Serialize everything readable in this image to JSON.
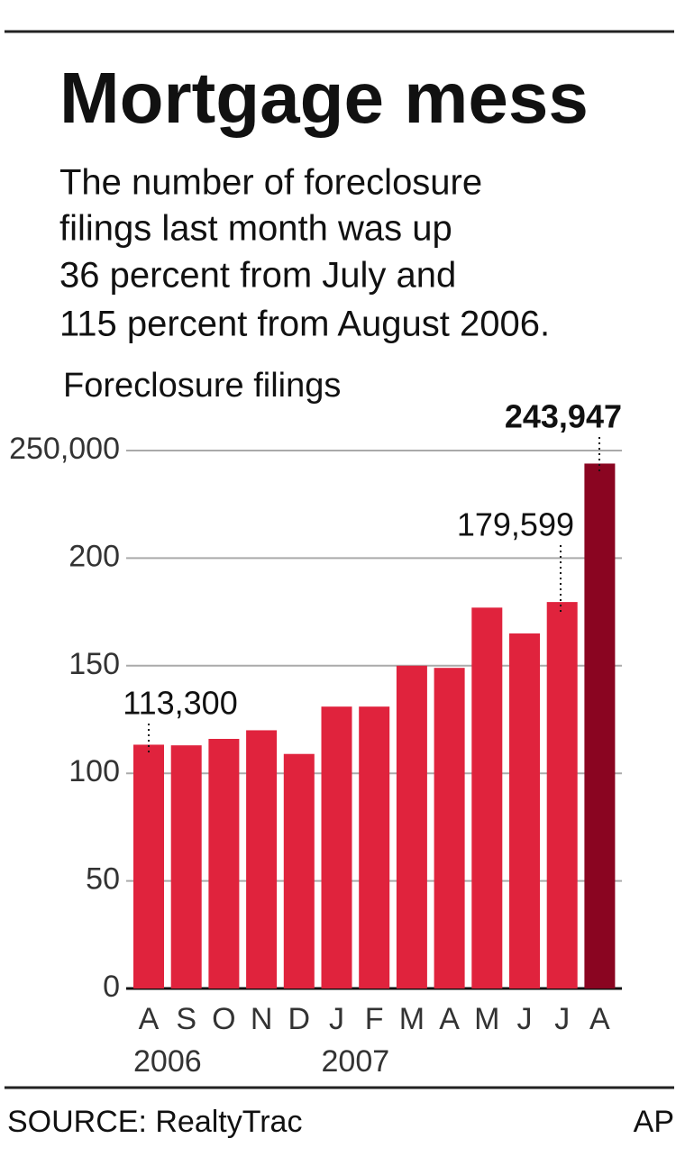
{
  "chart_data": {
    "type": "bar",
    "title": "Mortgage mess",
    "subtitle": [
      "The number of foreclosure",
      "filings last month was up",
      "36 percent from July and",
      "115 percent from August 2006."
    ],
    "y_label": "Foreclosure filings",
    "categories": [
      "A",
      "S",
      "O",
      "N",
      "D",
      "J",
      "F",
      "M",
      "A",
      "M",
      "J",
      "J",
      "A"
    ],
    "year_labels": [
      "2006",
      null,
      null,
      null,
      null,
      "2007",
      null,
      null,
      null,
      null,
      null,
      null,
      null
    ],
    "values": [
      113300,
      113000,
      116000,
      120000,
      109000,
      131000,
      131000,
      150000,
      149000,
      177000,
      165000,
      179599,
      243947
    ],
    "value_labels": [
      "113,300",
      null,
      null,
      null,
      null,
      null,
      null,
      null,
      null,
      null,
      null,
      "179,599",
      "243,947"
    ],
    "colors": [
      "#e0233d",
      "#e0233d",
      "#e0233d",
      "#e0233d",
      "#e0233d",
      "#e0233d",
      "#e0233d",
      "#e0233d",
      "#e0233d",
      "#e0233d",
      "#e0233d",
      "#e0233d",
      "#8a0521"
    ],
    "ylim": [
      0,
      250000
    ],
    "yticks": [
      0,
      {
        "value": 50000,
        "label": "50"
      },
      {
        "value": 100000,
        "label": "100"
      },
      {
        "value": 150000,
        "label": "150"
      },
      {
        "value": 200000,
        "label": "200"
      },
      {
        "value": 250000,
        "label": "250,000"
      }
    ],
    "grid": true,
    "source": "SOURCE: RealtyTrac",
    "credit": "AP"
  }
}
